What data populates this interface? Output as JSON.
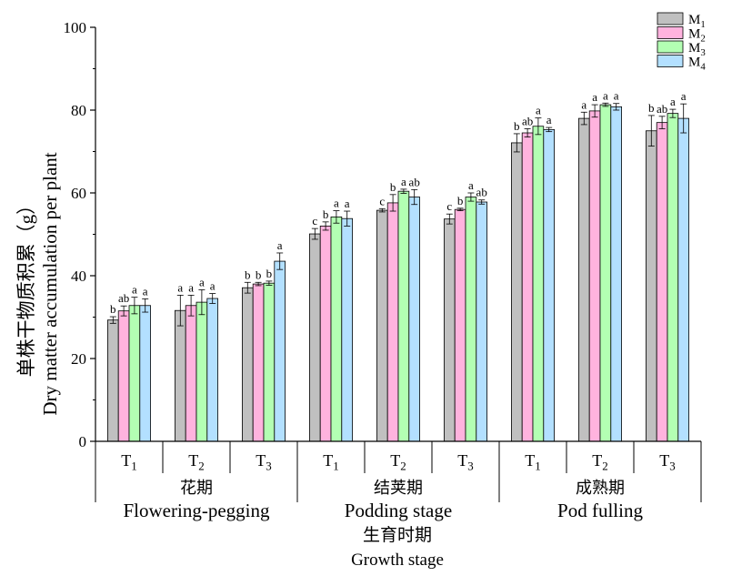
{
  "chart_data": {
    "type": "bar",
    "ylabel_cn": "单株干物质积累（g）",
    "ylabel_en": "Dry matter accumulation per plant",
    "xlabel_cn": "生育时期",
    "xlabel_en": "Growth stage",
    "ylim": [
      0,
      100
    ],
    "yticks": [
      0,
      20,
      40,
      60,
      80,
      100
    ],
    "legend_position": "top-right",
    "series": [
      {
        "name": "M1",
        "base": "M",
        "sub": "1",
        "color": "#c0c0c0"
      },
      {
        "name": "M2",
        "base": "M",
        "sub": "2",
        "color": "#ffb3de"
      },
      {
        "name": "M3",
        "base": "M",
        "sub": "3",
        "color": "#b3ffb3"
      },
      {
        "name": "M4",
        "base": "M",
        "sub": "4",
        "color": "#b3e0ff"
      }
    ],
    "stages": [
      {
        "name_cn": "花期",
        "name_en": "Flowering-pegging",
        "groups": [
          {
            "label": "T1",
            "base": "T",
            "sub": "1",
            "values": [
              29.3,
              31.5,
              32.8,
              32.8
            ],
            "errors": [
              0.8,
              1.2,
              2.0,
              1.6
            ],
            "letters": [
              "b",
              "ab",
              "a",
              "a"
            ]
          },
          {
            "label": "T2",
            "base": "T",
            "sub": "2",
            "values": [
              31.6,
              32.8,
              33.6,
              34.5
            ],
            "errors": [
              3.7,
              2.5,
              3.0,
              1.2
            ],
            "letters": [
              "a",
              "a",
              "a",
              "a"
            ]
          },
          {
            "label": "T3",
            "base": "T",
            "sub": "3",
            "values": [
              37.1,
              38.0,
              38.2,
              43.5
            ],
            "errors": [
              1.3,
              0.4,
              0.5,
              2.0
            ],
            "letters": [
              "b",
              "b",
              "b",
              "a"
            ]
          }
        ]
      },
      {
        "name_cn": "结荚期",
        "name_en": "Podding stage",
        "groups": [
          {
            "label": "T1",
            "base": "T",
            "sub": "1",
            "values": [
              50.1,
              52.0,
              54.2,
              53.8
            ],
            "errors": [
              1.3,
              1.0,
              1.5,
              1.8
            ],
            "letters": [
              "c",
              "b",
              "a",
              "a"
            ]
          },
          {
            "label": "T2",
            "base": "T",
            "sub": "2",
            "values": [
              55.8,
              57.6,
              60.4,
              59.0
            ],
            "errors": [
              0.4,
              2.0,
              0.5,
              1.8
            ],
            "letters": [
              "c",
              "b",
              "a",
              "ab"
            ]
          },
          {
            "label": "T3",
            "base": "T",
            "sub": "3",
            "values": [
              53.7,
              56.0,
              59.0,
              57.8
            ],
            "errors": [
              1.2,
              0.3,
              1.0,
              0.5
            ],
            "letters": [
              "c",
              "b",
              "a",
              "ab"
            ]
          }
        ]
      },
      {
        "name_cn": "成熟期",
        "name_en": "Pod fulling",
        "groups": [
          {
            "label": "T1",
            "base": "T",
            "sub": "1",
            "values": [
              72.1,
              74.5,
              76.1,
              75.3
            ],
            "errors": [
              2.2,
              1.0,
              2.0,
              0.5
            ],
            "letters": [
              "b",
              "ab",
              "a",
              "a"
            ]
          },
          {
            "label": "T2",
            "base": "T",
            "sub": "2",
            "values": [
              78.0,
              79.8,
              81.3,
              80.8
            ],
            "errors": [
              1.5,
              1.5,
              0.4,
              0.8
            ],
            "letters": [
              "a",
              "a",
              "a",
              "a"
            ]
          },
          {
            "label": "T3",
            "base": "T",
            "sub": "3",
            "values": [
              75.0,
              77.0,
              79.2,
              78.0
            ],
            "errors": [
              3.7,
              1.5,
              1.0,
              3.5
            ],
            "letters": [
              "b",
              "ab",
              "a",
              "a"
            ]
          }
        ]
      }
    ]
  }
}
